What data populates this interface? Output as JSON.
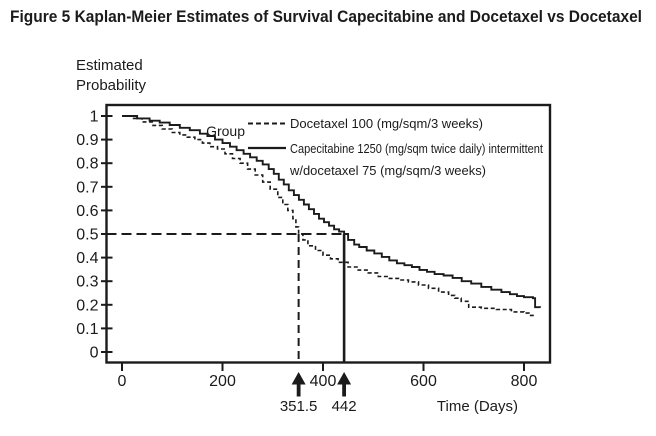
{
  "figure": {
    "title": "Figure 5 Kaplan-Meier Estimates of Survival Capecitabine and Docetaxel vs Docetaxel"
  },
  "colors": {
    "ink": "#1b1b1b",
    "background": "#ffffff"
  },
  "chart_data": {
    "type": "line",
    "subtype": "kaplan_meier_step",
    "title": "Figure 5 Kaplan-Meier Estimates of Survival Capecitabine and Docetaxel vs Docetaxel",
    "xlabel": "Time (Days)",
    "ylabel": "Estimated Probability",
    "ylabel_lines": [
      "Estimated",
      "Probability"
    ],
    "xlim": [
      0,
      851
    ],
    "ylim": [
      0,
      1.05
    ],
    "grid": false,
    "legend_position": "upper-right-inside",
    "legend": {
      "group_label": "Group",
      "entries": [
        {
          "label": "Docetaxel 100 (mg/sqm/3 weeks)",
          "style": "dashed",
          "lines": [
            "Docetaxel 100 (mg/sqm/3 weeks)"
          ]
        },
        {
          "label": "Capecitabine 1250 (mg/sqm twice daily) intermittent w/docetaxel 75 (mg/sqm/3 weeks)",
          "style": "solid",
          "lines": [
            "Capecitabine 1250 (mg/sqm twice daily) intermittent",
            "w/docetaxel 75 (mg/sqm/3 weeks)"
          ]
        }
      ]
    },
    "xticks": [
      {
        "value": 0,
        "label": "0"
      },
      {
        "value": 200,
        "label": "200"
      },
      {
        "value": 400,
        "label": "400"
      },
      {
        "value": 600,
        "label": "600"
      },
      {
        "value": 800,
        "label": "800"
      }
    ],
    "yticks": [
      {
        "value": 1.0,
        "label": "1"
      },
      {
        "value": 0.9,
        "label": "0.9"
      },
      {
        "value": 0.8,
        "label": "0.8"
      },
      {
        "value": 0.7,
        "label": "0.7"
      },
      {
        "value": 0.6,
        "label": "0.6"
      },
      {
        "value": 0.5,
        "label": "0.5"
      },
      {
        "value": 0.4,
        "label": "0.4"
      },
      {
        "value": 0.3,
        "label": "0.3"
      },
      {
        "value": 0.2,
        "label": "0.2"
      },
      {
        "value": 0.1,
        "label": "0.1"
      },
      {
        "value": 0.0,
        "label": "0"
      }
    ],
    "reference_probability": 0.5,
    "median_markers": [
      {
        "label": "351.5",
        "value": 351.5,
        "series": "docetaxel",
        "line_style": "dashed"
      },
      {
        "label": "442",
        "value": 442,
        "series": "capecitabine-docetaxel",
        "line_style": "solid"
      }
    ],
    "series": [
      {
        "name": "Docetaxel 100 (mg/sqm/3 weeks)",
        "slug": "docetaxel",
        "style": "dashed",
        "median_days": 351.5,
        "points": [
          [
            0,
            1.0
          ],
          [
            20,
            0.99
          ],
          [
            40,
            0.975
          ],
          [
            60,
            0.96
          ],
          [
            80,
            0.945
          ],
          [
            100,
            0.93
          ],
          [
            115,
            0.92
          ],
          [
            130,
            0.91
          ],
          [
            145,
            0.9
          ],
          [
            160,
            0.885
          ],
          [
            175,
            0.87
          ],
          [
            190,
            0.86
          ],
          [
            205,
            0.84
          ],
          [
            220,
            0.82
          ],
          [
            235,
            0.8
          ],
          [
            250,
            0.775
          ],
          [
            265,
            0.75
          ],
          [
            280,
            0.72
          ],
          [
            295,
            0.69
          ],
          [
            310,
            0.655
          ],
          [
            320,
            0.625
          ],
          [
            330,
            0.6
          ],
          [
            340,
            0.565
          ],
          [
            346,
            0.53
          ],
          [
            351.5,
            0.5
          ],
          [
            360,
            0.475
          ],
          [
            370,
            0.45
          ],
          [
            385,
            0.43
          ],
          [
            400,
            0.41
          ],
          [
            415,
            0.395
          ],
          [
            430,
            0.38
          ],
          [
            450,
            0.36
          ],
          [
            470,
            0.347
          ],
          [
            490,
            0.335
          ],
          [
            510,
            0.32
          ],
          [
            530,
            0.312
          ],
          [
            550,
            0.305
          ],
          [
            570,
            0.297
          ],
          [
            590,
            0.284
          ],
          [
            610,
            0.27
          ],
          [
            630,
            0.254
          ],
          [
            650,
            0.24
          ],
          [
            662,
            0.228
          ],
          [
            675,
            0.215
          ],
          [
            690,
            0.19
          ],
          [
            715,
            0.185
          ],
          [
            745,
            0.18
          ],
          [
            775,
            0.17
          ],
          [
            800,
            0.165
          ],
          [
            810,
            0.155
          ],
          [
            820,
            0.148
          ]
        ]
      },
      {
        "name": "Capecitabine 1250 (mg/sqm twice daily) intermittent w/docetaxel 75 (mg/sqm/3 weeks)",
        "slug": "capecitabine-docetaxel",
        "style": "solid",
        "median_days": 442,
        "points": [
          [
            0,
            1.0
          ],
          [
            30,
            0.99
          ],
          [
            55,
            0.98
          ],
          [
            75,
            0.972
          ],
          [
            95,
            0.962
          ],
          [
            115,
            0.95
          ],
          [
            135,
            0.94
          ],
          [
            155,
            0.925
          ],
          [
            170,
            0.915
          ],
          [
            185,
            0.9
          ],
          [
            200,
            0.885
          ],
          [
            215,
            0.87
          ],
          [
            228,
            0.855
          ],
          [
            242,
            0.84
          ],
          [
            255,
            0.825
          ],
          [
            268,
            0.81
          ],
          [
            280,
            0.795
          ],
          [
            292,
            0.775
          ],
          [
            302,
            0.755
          ],
          [
            312,
            0.73
          ],
          [
            322,
            0.71
          ],
          [
            332,
            0.685
          ],
          [
            342,
            0.665
          ],
          [
            352,
            0.645
          ],
          [
            362,
            0.625
          ],
          [
            372,
            0.605
          ],
          [
            382,
            0.585
          ],
          [
            392,
            0.565
          ],
          [
            402,
            0.55
          ],
          [
            412,
            0.535
          ],
          [
            422,
            0.52
          ],
          [
            432,
            0.51
          ],
          [
            442,
            0.5
          ],
          [
            450,
            0.475
          ],
          [
            462,
            0.455
          ],
          [
            472,
            0.445
          ],
          [
            487,
            0.43
          ],
          [
            502,
            0.418
          ],
          [
            517,
            0.403
          ],
          [
            532,
            0.388
          ],
          [
            547,
            0.376
          ],
          [
            562,
            0.368
          ],
          [
            577,
            0.36
          ],
          [
            592,
            0.348
          ],
          [
            607,
            0.34
          ],
          [
            622,
            0.33
          ],
          [
            640,
            0.324
          ],
          [
            658,
            0.314
          ],
          [
            676,
            0.3
          ],
          [
            695,
            0.29
          ],
          [
            715,
            0.276
          ],
          [
            735,
            0.264
          ],
          [
            755,
            0.254
          ],
          [
            772,
            0.245
          ],
          [
            786,
            0.237
          ],
          [
            800,
            0.232
          ],
          [
            818,
            0.228
          ],
          [
            822,
            0.19
          ],
          [
            832,
            0.188
          ]
        ]
      }
    ]
  }
}
